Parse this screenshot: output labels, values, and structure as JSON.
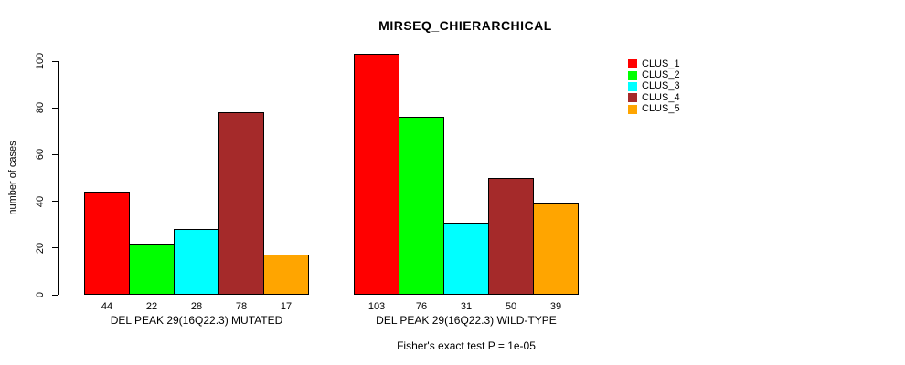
{
  "chart_data": {
    "type": "bar",
    "title": "MIRSEQ_CHIERARCHICAL",
    "xlabel": "",
    "ylabel": "number of cases",
    "ylim": [
      0,
      100
    ],
    "yticks": [
      0,
      20,
      40,
      60,
      80,
      100
    ],
    "grid": false,
    "legend_position": "right",
    "bar_value_labels": true,
    "categories": [
      "DEL PEAK 29(16Q22.3) MUTATED",
      "DEL PEAK 29(16Q22.3) WILD-TYPE"
    ],
    "series": [
      {
        "name": "CLUS_1",
        "color": "#ff0000",
        "values": [
          44,
          103
        ]
      },
      {
        "name": "CLUS_2",
        "color": "#00ff00",
        "values": [
          22,
          76
        ]
      },
      {
        "name": "CLUS_3",
        "color": "#00ffff",
        "values": [
          28,
          31
        ]
      },
      {
        "name": "CLUS_4",
        "color": "#a52a2a",
        "values": [
          78,
          50
        ]
      },
      {
        "name": "CLUS_5",
        "color": "#ffa500",
        "values": [
          17,
          39
        ]
      }
    ],
    "annotation": "Fisher's exact test P = 1e-05"
  }
}
